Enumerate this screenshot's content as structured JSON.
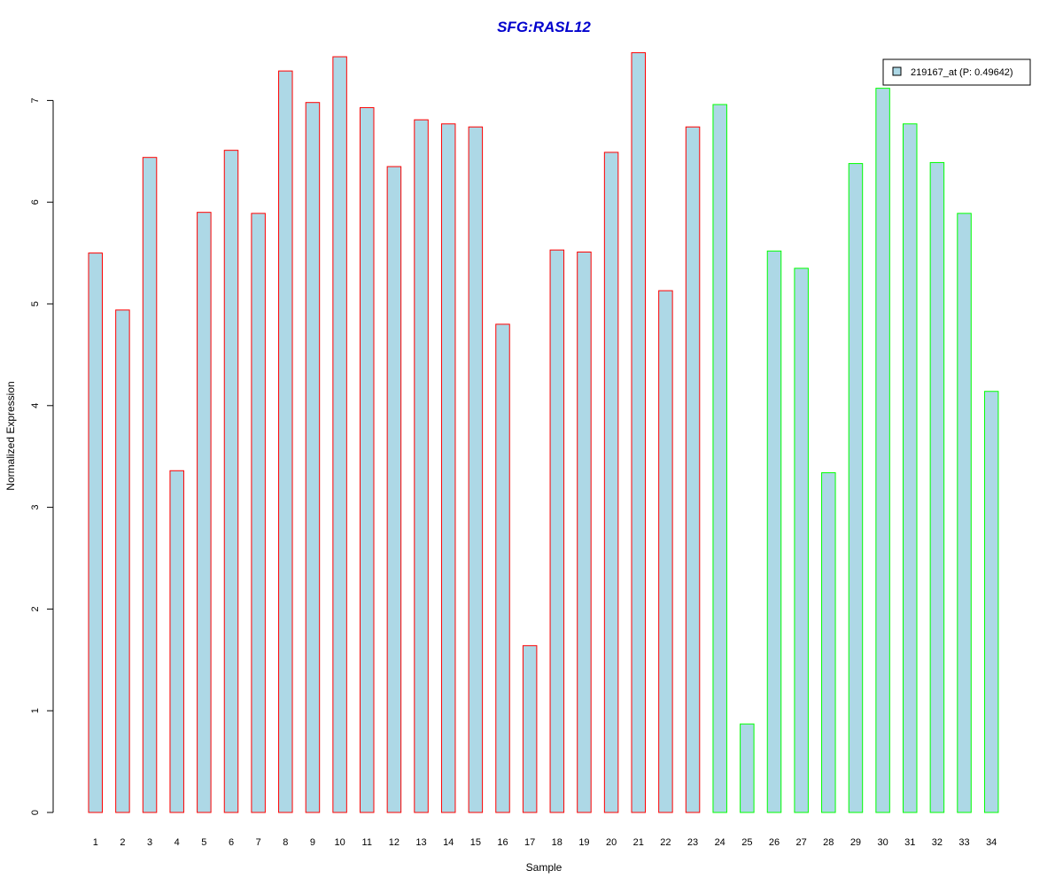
{
  "chart_data": {
    "type": "bar",
    "title": "SFG:RASL12",
    "xlabel": "Sample",
    "ylabel": "Normalized Expression",
    "categories": [
      "1",
      "2",
      "3",
      "4",
      "5",
      "6",
      "7",
      "8",
      "9",
      "10",
      "11",
      "12",
      "13",
      "14",
      "15",
      "16",
      "17",
      "18",
      "19",
      "20",
      "21",
      "22",
      "23",
      "24",
      "25",
      "26",
      "27",
      "28",
      "29",
      "30",
      "31",
      "32",
      "33",
      "34"
    ],
    "series": [
      {
        "name": "219167_at (P: 0.49642)",
        "values": [
          5.5,
          4.94,
          6.44,
          3.36,
          5.9,
          6.51,
          5.89,
          7.29,
          6.98,
          7.43,
          6.93,
          6.35,
          6.81,
          6.77,
          6.74,
          4.8,
          1.64,
          5.53,
          5.51,
          6.49,
          7.47,
          5.13,
          6.74,
          6.96,
          0.87,
          5.52,
          5.35,
          3.34,
          6.38,
          7.12,
          6.77,
          6.39,
          5.89,
          4.14
        ]
      }
    ],
    "ylim": [
      0,
      7
    ],
    "yticks": [
      "0",
      "1",
      "2",
      "3",
      "4",
      "5",
      "6",
      "7"
    ],
    "grid": false,
    "legend_position": "top-right",
    "fill_color": "#add8e6",
    "edge_colors": [
      "#ff0000",
      "#ff0000",
      "#ff0000",
      "#ff0000",
      "#ff0000",
      "#ff0000",
      "#ff0000",
      "#ff0000",
      "#ff0000",
      "#ff0000",
      "#ff0000",
      "#ff0000",
      "#ff0000",
      "#ff0000",
      "#ff0000",
      "#ff0000",
      "#ff0000",
      "#ff0000",
      "#ff0000",
      "#ff0000",
      "#ff0000",
      "#ff0000",
      "#ff0000",
      "#00ff00",
      "#00ff00",
      "#00ff00",
      "#00ff00",
      "#00ff00",
      "#00ff00",
      "#00ff00",
      "#00ff00",
      "#00ff00",
      "#00ff00",
      "#00ff00"
    ],
    "title_color": "#0000cd"
  }
}
